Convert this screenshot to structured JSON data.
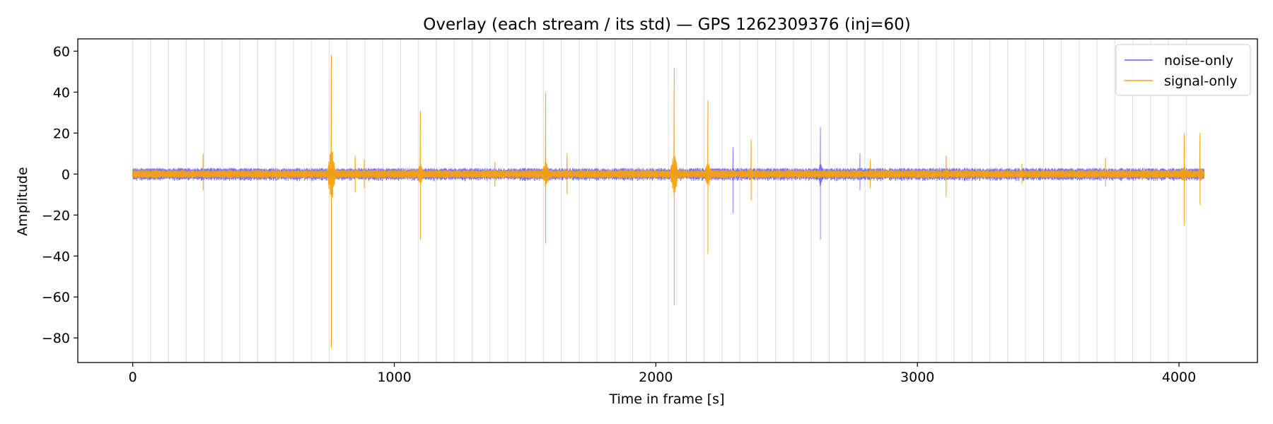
{
  "chart_data": {
    "type": "line",
    "title": "Overlay (each stream / its std) — GPS 1262309376 (inj=60)",
    "xlabel": "Time in frame [s]",
    "ylabel": "Amplitude",
    "xlim": [
      -210,
      4300
    ],
    "ylim": [
      -92,
      66
    ],
    "xticks": [
      0,
      1000,
      2000,
      3000,
      4000
    ],
    "yticks": [
      -80,
      -60,
      -40,
      -20,
      0,
      20,
      40,
      60
    ],
    "grid": false,
    "vertical_guides_every": 68.27,
    "legend": {
      "position": "top-right"
    },
    "time_span": [
      0,
      4096
    ],
    "series": [
      {
        "name": "noise-only",
        "color": "#5b5bff",
        "baseline_band": 3.0,
        "spikes": [
          {
            "x": 2295,
            "max": 13,
            "min": -19
          },
          {
            "x": 2630,
            "max": 23,
            "min": -32
          },
          {
            "x": 2780,
            "max": 10,
            "min": -8
          }
        ]
      },
      {
        "name": "signal-only",
        "color": "#f5a10f",
        "baseline_band": 2.0,
        "spikes": [
          {
            "x": 270,
            "max": 10,
            "min": -8
          },
          {
            "x": 760,
            "max": 58,
            "min": -85
          },
          {
            "x": 850,
            "max": 9,
            "min": -9
          },
          {
            "x": 885,
            "max": 7,
            "min": -7
          },
          {
            "x": 1100,
            "max": 31,
            "min": -32
          },
          {
            "x": 1385,
            "max": 6,
            "min": -6
          },
          {
            "x": 1578,
            "max": 40,
            "min": -34
          },
          {
            "x": 1660,
            "max": 10,
            "min": -10
          },
          {
            "x": 2070,
            "max": 52,
            "min": -64
          },
          {
            "x": 2200,
            "max": 36,
            "min": -39
          },
          {
            "x": 2365,
            "max": 17,
            "min": -13
          },
          {
            "x": 2820,
            "max": 7,
            "min": -7
          },
          {
            "x": 3110,
            "max": 9,
            "min": -11
          },
          {
            "x": 3400,
            "max": 5,
            "min": -5
          },
          {
            "x": 3720,
            "max": 8,
            "min": -6
          },
          {
            "x": 4020,
            "max": 20,
            "min": -25
          },
          {
            "x": 4080,
            "max": 20,
            "min": -15
          }
        ]
      }
    ]
  }
}
